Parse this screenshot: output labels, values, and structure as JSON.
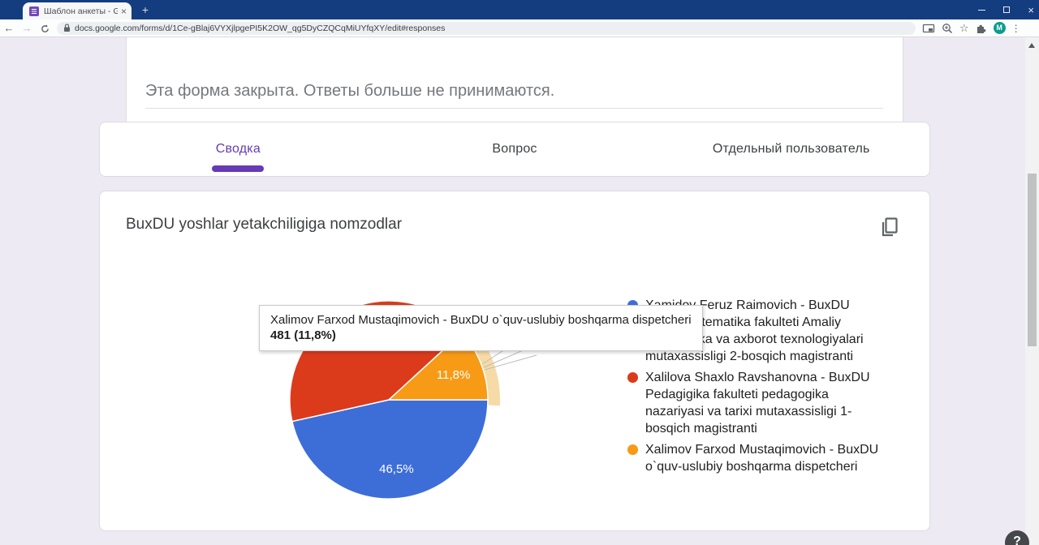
{
  "browser": {
    "tab_title": "Шаблон анкеты - Google Фору",
    "url": "docs.google.com/forms/d/1Ce-gBlaj6VYXjlpgePI5K2OW_qg5DyCZQCqMiUYfqXY/edit#responses",
    "avatar_letter": "M",
    "icons": {
      "back": "←",
      "forward": "→",
      "new_tab": "+",
      "tab_close": "×",
      "menu": "⋮",
      "star": "☆",
      "window_close": "×"
    }
  },
  "form": {
    "closed_message": "Эта форма закрыта. Ответы больше не принимаются."
  },
  "tabs": [
    {
      "label": "Сводка",
      "active": true
    },
    {
      "label": "Вопрос",
      "active": false
    },
    {
      "label": "Отдельный пользователь",
      "active": false
    }
  ],
  "chart_card": {
    "title": "BuxDU yoshlar yetakchiligiga nomzodlar"
  },
  "tooltip": {
    "line1": "Xalimov Farxod Mustaqimovich - BuxDU o`quv-uslubiy boshqarma dispetcheri",
    "line2": "481 (11,8%)"
  },
  "chart_data": {
    "type": "pie",
    "title": "BuxDU yoshlar yetakchiligiga nomzodlar",
    "legend_position": "right",
    "highlight_halo_color": "#F6DBA7",
    "slices": [
      {
        "legend": "Xamidov Feruz Raimovich - BuxDU\nFizika-matematika fakulteti Amaliy\nmatematika va axborot texnologiyalari\nmutaxassisligi 2-bosqich magistranti",
        "percent": 46.5,
        "label": "46,5%",
        "color": "#3D6ED8",
        "highlighted": false
      },
      {
        "legend": "Xalilova Shaxlo Ravshanovna - BuxDU\nPedagigika fakulteti pedagogika\nnazariyasi va tarixi mutaxassisligi 1-\nbosqich magistranti",
        "percent": 41.7,
        "label": "",
        "color": "#DB3B1B",
        "highlighted": false
      },
      {
        "legend": "Xalimov Farxod Mustaqimovich - BuxDU\no`quv-uslubiy boshqarma dispetcheri",
        "percent": 11.8,
        "label": "11,8%",
        "color": "#F79A16",
        "count": 481,
        "highlighted": true
      }
    ]
  },
  "help_label": "?"
}
